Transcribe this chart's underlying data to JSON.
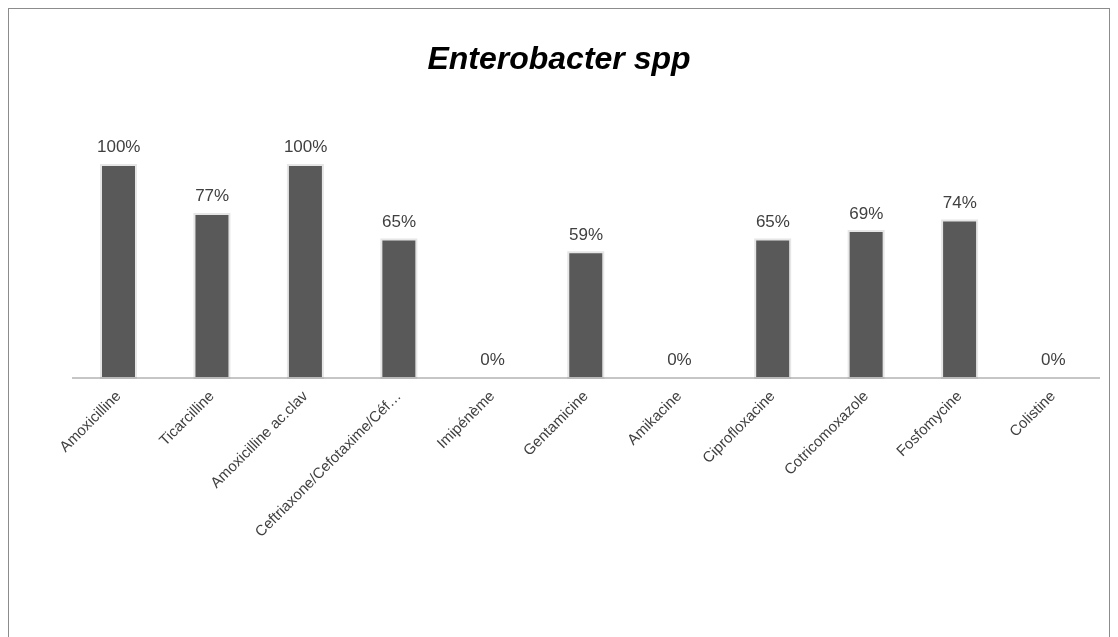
{
  "chart_data": {
    "type": "bar",
    "title": "Enterobacter spp",
    "categories": [
      "Amoxicilline",
      "Ticarcilline",
      "Amoxicilline ac.clav",
      "Ceftriaxone/Cefotaxime/Céf…",
      "Imipénème",
      "Gentamicine",
      "Amikacine",
      "Ciprofloxacine",
      "Cotricomoxazole",
      "Fosfomycine",
      "Colistine"
    ],
    "values": [
      100,
      77,
      100,
      65,
      0,
      59,
      0,
      65,
      69,
      74,
      0
    ],
    "value_labels": [
      "100%",
      "77%",
      "100%",
      "65%",
      "0%",
      "59%",
      "0%",
      "65%",
      "69%",
      "74%",
      "0%"
    ],
    "color": "#595959",
    "grid": false,
    "legend": false
  }
}
